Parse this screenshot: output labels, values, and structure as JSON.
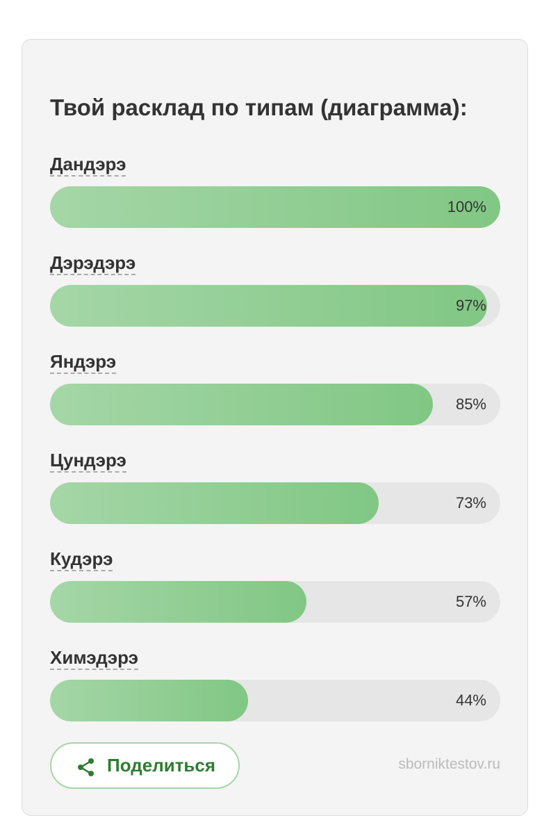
{
  "chart_data": {
    "type": "bar",
    "title": "Твой расклад по типам (диаграмма):",
    "categories": [
      "Дандэрэ",
      "Дэрэдэрэ",
      "Яндэрэ",
      "Цундэрэ",
      "Кудэрэ",
      "Химэдэрэ"
    ],
    "values": [
      100,
      97,
      85,
      73,
      57,
      44
    ],
    "value_labels": [
      "100%",
      "97%",
      "85%",
      "73%",
      "57%",
      "44%"
    ],
    "xlim": [
      0,
      100
    ],
    "color": "#81c784"
  },
  "share_button": "Поделиться",
  "site": "sborniktestov.ru"
}
